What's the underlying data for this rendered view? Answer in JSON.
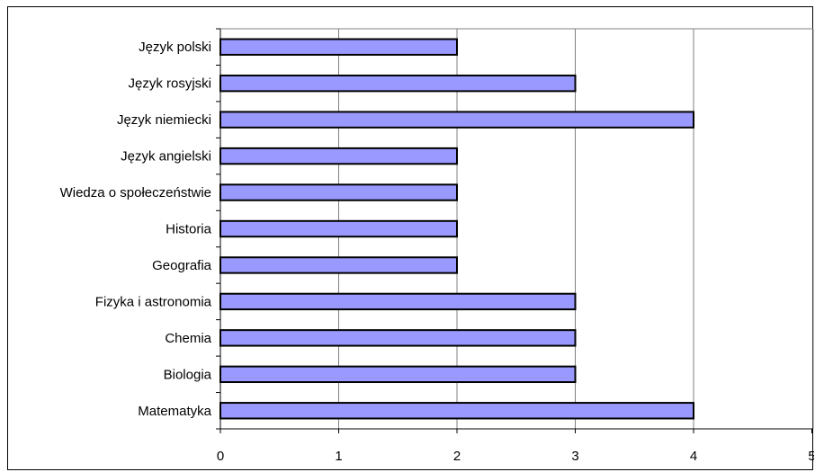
{
  "chart_data": {
    "type": "bar",
    "orientation": "horizontal",
    "title": "",
    "xlabel": "",
    "ylabel": "",
    "categories": [
      "Język polski",
      "Język rosyjski",
      "Język niemiecki",
      "Język angielski",
      "Wiedza o społeczeństwie",
      "Historia",
      "Geografia",
      "Fizyka i astronomia",
      "Chemia",
      "Biologia",
      "Matematyka"
    ],
    "values": [
      2,
      3,
      4,
      2,
      2,
      2,
      2,
      3,
      3,
      3,
      4
    ],
    "xlim": [
      0,
      5
    ],
    "x_ticks": [
      "0",
      "1",
      "2",
      "3",
      "4",
      "5"
    ],
    "grid": "vertical",
    "legend": "none",
    "colors": {
      "bar_fill": "#9999FF",
      "bar_edge": "#000000",
      "grid": "#808080",
      "axis": "#000000",
      "plot_border": "#808080",
      "background": "#FFFFFF"
    }
  }
}
